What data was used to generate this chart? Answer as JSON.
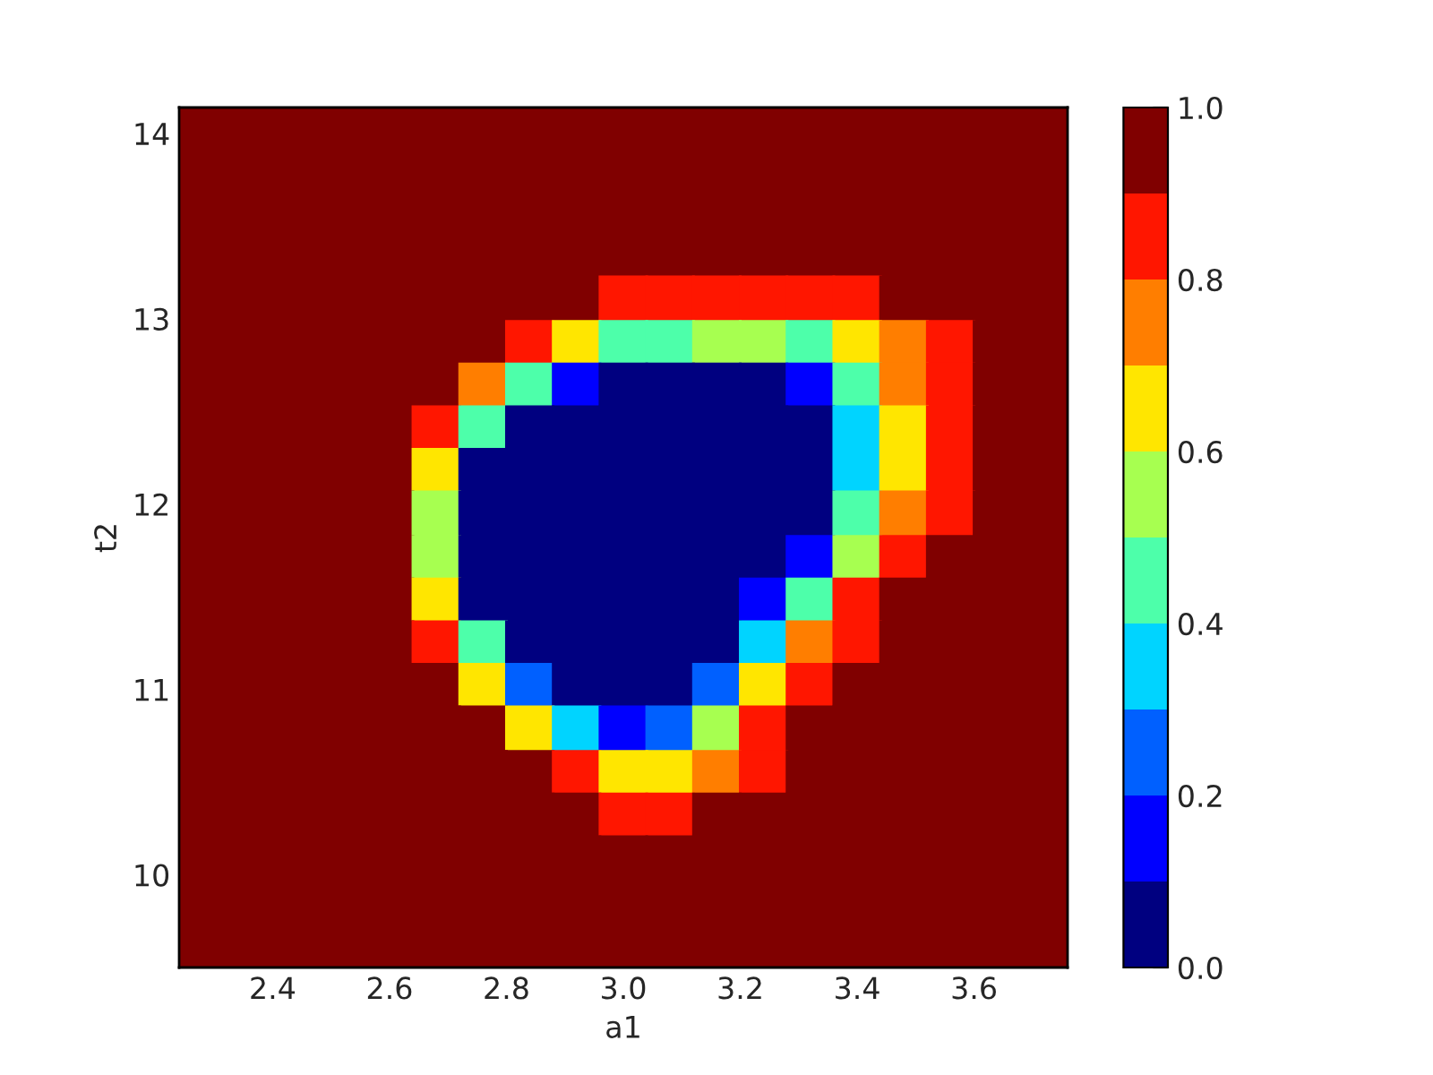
{
  "chart_data": {
    "type": "scatter",
    "marker": "square",
    "xlabel": "a1",
    "ylabel": "t2",
    "xlim": [
      2.24,
      3.76
    ],
    "xticks": [
      {
        "value": 2.4,
        "label": "2.4"
      },
      {
        "value": 2.6,
        "label": "2.6"
      },
      {
        "value": 2.8,
        "label": "2.8"
      },
      {
        "value": 3.0,
        "label": "3.0"
      },
      {
        "value": 3.2,
        "label": "3.2"
      },
      {
        "value": 3.4,
        "label": "3.4"
      },
      {
        "value": 3.6,
        "label": "3.6"
      }
    ],
    "ylim": [
      9.5,
      14.14
    ],
    "yticks": [
      10,
      11,
      12,
      13,
      14
    ],
    "clim": [
      0,
      1
    ],
    "cticks": [
      {
        "value": 0,
        "label": "0.0"
      },
      {
        "value": 0.2,
        "label": "0.2"
      },
      {
        "value": 0.4,
        "label": "0.4"
      },
      {
        "value": 0.6,
        "label": "0.6"
      },
      {
        "value": 0.8,
        "label": "0.8"
      },
      {
        "value": 1,
        "label": "1.0"
      }
    ],
    "x": [
      2.28,
      2.36,
      2.44,
      2.52,
      2.6,
      2.68,
      2.76,
      2.84,
      2.92,
      3.0,
      3.08,
      3.16,
      3.24,
      3.32,
      3.4,
      3.48,
      3.56,
      3.64,
      3.72,
      2.28,
      2.36,
      2.44,
      2.52,
      2.6,
      2.68,
      2.76,
      2.84,
      2.92,
      3.0,
      3.08,
      3.16,
      3.24,
      3.32,
      3.4,
      3.48,
      3.56,
      3.64,
      3.72,
      2.28,
      2.36,
      2.44,
      2.52,
      2.6,
      2.68,
      2.76,
      2.84,
      2.92,
      3.0,
      3.08,
      3.16,
      3.24,
      3.32,
      3.4,
      3.48,
      3.56,
      3.64,
      3.72,
      2.28,
      2.36,
      2.44,
      2.52,
      2.6,
      2.68,
      2.76,
      2.84,
      2.92,
      3.0,
      3.08,
      3.16,
      3.24,
      3.32,
      3.4,
      3.48,
      3.56,
      3.64,
      3.72,
      2.28,
      2.36,
      2.44,
      2.52,
      2.6,
      2.68,
      2.76,
      2.84,
      2.92,
      3.0,
      3.08,
      3.16,
      3.24,
      3.32,
      3.4,
      3.48,
      3.56,
      3.64,
      3.72,
      2.28,
      2.36,
      2.44,
      2.52,
      2.6,
      2.68,
      2.76,
      2.84,
      2.92,
      3.0,
      3.08,
      3.16,
      3.24,
      3.32,
      3.4,
      3.48,
      3.56,
      3.64,
      3.72,
      2.28,
      2.36,
      2.44,
      2.52,
      2.6,
      2.68,
      2.76,
      2.84,
      2.92,
      3.0,
      3.08,
      3.16,
      3.24,
      3.32,
      3.4,
      3.48,
      3.56,
      3.64,
      3.72,
      2.28,
      2.36,
      2.44,
      2.52,
      2.6,
      2.68,
      2.76,
      2.84,
      2.92,
      3.0,
      3.08,
      3.16,
      3.24,
      3.32,
      3.4,
      3.48,
      3.56,
      3.64,
      3.72,
      2.28,
      2.36,
      2.44,
      2.52,
      2.6,
      2.68,
      2.76,
      2.84,
      2.92,
      3.0,
      3.08,
      3.16,
      3.24,
      3.32,
      3.4,
      3.48,
      3.56,
      3.64,
      3.72,
      2.28,
      2.36,
      2.44,
      2.52,
      2.6,
      2.68,
      2.76,
      2.84,
      2.92,
      3.0,
      3.08,
      3.16,
      3.24,
      3.32,
      3.4,
      3.48,
      3.56,
      3.64,
      3.72,
      2.28,
      2.36,
      2.44,
      2.52,
      2.6,
      2.68,
      2.76,
      2.84,
      2.92,
      3.0,
      3.08,
      3.16,
      3.24,
      3.32,
      3.4,
      3.48,
      3.56,
      3.64,
      3.72,
      2.28,
      2.36,
      2.44,
      2.52,
      2.6,
      2.68,
      2.76,
      2.84,
      2.92,
      3.0,
      3.08,
      3.16,
      3.24,
      3.32,
      3.4,
      3.48,
      3.56,
      3.64,
      3.72,
      2.28,
      2.36,
      2.44,
      2.52,
      2.6,
      2.68,
      2.76,
      2.84,
      2.92,
      3.0,
      3.08,
      3.16,
      3.24,
      3.32,
      3.4,
      3.48,
      3.56,
      3.64,
      3.72,
      2.28,
      2.36,
      2.44,
      2.52,
      2.6,
      2.68,
      2.76,
      2.84,
      2.92,
      3.0,
      3.08,
      3.16,
      3.24,
      3.32,
      3.4,
      3.48,
      3.56,
      3.64,
      3.72,
      2.28,
      2.36,
      2.44,
      2.52,
      2.6,
      2.68,
      2.76,
      2.84,
      2.92,
      3.0,
      3.08,
      3.16,
      3.24,
      3.32,
      3.4,
      3.48,
      3.56,
      3.64,
      3.72,
      2.28,
      2.36,
      2.44,
      2.52,
      2.6,
      2.68,
      2.76,
      2.84,
      2.92,
      3.0,
      3.08,
      3.16,
      3.24,
      3.32,
      3.4,
      3.48,
      3.56,
      3.64,
      3.72,
      2.28,
      2.36,
      2.44,
      2.52,
      2.6,
      2.68,
      2.76,
      2.84,
      2.92,
      3.0,
      3.08,
      3.16,
      3.24,
      3.32,
      3.4,
      3.48,
      3.56,
      3.64,
      3.72,
      2.28,
      2.36,
      2.44,
      2.52,
      2.6,
      2.68,
      2.76,
      2.84,
      2.92,
      3.0,
      3.08,
      3.16,
      3.24,
      3.32,
      3.4,
      3.48,
      3.56,
      3.64,
      3.72,
      2.28,
      2.36,
      2.44,
      2.52,
      2.6,
      2.68,
      2.76,
      2.84,
      2.92,
      3.0,
      3.08,
      3.16,
      3.24,
      3.32,
      3.4,
      3.48,
      3.56,
      3.64,
      3.72,
      2.28,
      2.36,
      2.44,
      2.52,
      2.6,
      2.68,
      2.76,
      2.84,
      2.92,
      3.0,
      3.08,
      3.16,
      3.24,
      3.32,
      3.4,
      3.48,
      3.56,
      3.64,
      3.72
    ],
    "values": [
      14.02,
      14.02,
      14.02,
      14.02,
      14.02,
      14.02,
      14.02,
      14.02,
      14.02,
      14.02,
      14.02,
      14.02,
      14.02,
      14.02,
      14.02,
      14.02,
      14.02,
      14.02,
      14.02,
      13.79,
      13.79,
      13.79,
      13.79,
      13.79,
      13.79,
      13.79,
      13.79,
      13.79,
      13.79,
      13.79,
      13.79,
      13.79,
      13.79,
      13.79,
      13.79,
      13.79,
      13.79,
      13.79,
      13.56,
      13.56,
      13.56,
      13.56,
      13.56,
      13.56,
      13.56,
      13.56,
      13.56,
      13.56,
      13.56,
      13.56,
      13.56,
      13.56,
      13.56,
      13.56,
      13.56,
      13.56,
      13.56,
      13.33,
      13.33,
      13.33,
      13.33,
      13.33,
      13.33,
      13.33,
      13.33,
      13.33,
      13.33,
      13.33,
      13.33,
      13.33,
      13.33,
      13.33,
      13.33,
      13.33,
      13.33,
      13.33,
      13.1,
      13.1,
      13.1,
      13.1,
      13.1,
      13.1,
      13.1,
      13.1,
      13.1,
      13.1,
      13.1,
      13.1,
      13.1,
      13.1,
      13.1,
      13.1,
      13.1,
      13.1,
      13.1,
      12.86,
      12.86,
      12.86,
      12.86,
      12.86,
      12.86,
      12.86,
      12.86,
      12.86,
      12.86,
      12.86,
      12.86,
      12.86,
      12.86,
      12.86,
      12.86,
      12.86,
      12.86,
      12.86,
      12.63,
      12.63,
      12.63,
      12.63,
      12.63,
      12.63,
      12.63,
      12.63,
      12.63,
      12.63,
      12.63,
      12.63,
      12.63,
      12.63,
      12.63,
      12.63,
      12.63,
      12.63,
      12.63,
      12.4,
      12.4,
      12.4,
      12.4,
      12.4,
      12.4,
      12.4,
      12.4,
      12.4,
      12.4,
      12.4,
      12.4,
      12.4,
      12.4,
      12.4,
      12.4,
      12.4,
      12.4,
      12.4,
      12.17,
      12.17,
      12.17,
      12.17,
      12.17,
      12.17,
      12.17,
      12.17,
      12.17,
      12.17,
      12.17,
      12.17,
      12.17,
      12.17,
      12.17,
      12.17,
      12.17,
      12.17,
      12.17,
      11.94,
      11.94,
      11.94,
      11.94,
      11.94,
      11.94,
      11.94,
      11.94,
      11.94,
      11.94,
      11.94,
      11.94,
      11.94,
      11.94,
      11.94,
      11.94,
      11.94,
      11.94,
      11.94,
      11.7,
      11.7,
      11.7,
      11.7,
      11.7,
      11.7,
      11.7,
      11.7,
      11.7,
      11.7,
      11.7,
      11.7,
      11.7,
      11.7,
      11.7,
      11.7,
      11.7,
      11.7,
      11.7,
      11.47,
      11.47,
      11.47,
      11.47,
      11.47,
      11.47,
      11.47,
      11.47,
      11.47,
      11.47,
      11.47,
      11.47,
      11.47,
      11.47,
      11.47,
      11.47,
      11.47,
      11.47,
      11.47,
      11.24,
      11.24,
      11.24,
      11.24,
      11.24,
      11.24,
      11.24,
      11.24,
      11.24,
      11.24,
      11.24,
      11.24,
      11.24,
      11.24,
      11.24,
      11.24,
      11.24,
      11.24,
      11.24,
      11.01,
      11.01,
      11.01,
      11.01,
      11.01,
      11.01,
      11.01,
      11.01,
      11.01,
      11.01,
      11.01,
      11.01,
      11.01,
      11.01,
      11.01,
      11.01,
      11.01,
      11.01,
      11.01,
      10.78,
      10.78,
      10.78,
      10.78,
      10.78,
      10.78,
      10.78,
      10.78,
      10.78,
      10.78,
      10.78,
      10.78,
      10.78,
      10.78,
      10.78,
      10.78,
      10.78,
      10.78,
      10.78,
      10.54,
      10.54,
      10.54,
      10.54,
      10.54,
      10.54,
      10.54,
      10.54,
      10.54,
      10.54,
      10.54,
      10.54,
      10.54,
      10.54,
      10.54,
      10.54,
      10.54,
      10.54,
      10.54,
      10.31,
      10.31,
      10.31,
      10.31,
      10.31,
      10.31,
      10.31,
      10.31,
      10.31,
      10.31,
      10.31,
      10.31,
      10.31,
      10.31,
      10.31,
      10.31,
      10.31,
      10.31,
      10.31,
      10.08,
      10.08,
      10.08,
      10.08,
      10.08,
      10.08,
      10.08,
      10.08,
      10.08,
      10.08,
      10.08,
      10.08,
      10.08,
      10.08,
      10.08,
      10.08,
      10.08,
      10.08,
      10.08,
      9.85,
      9.85,
      9.85,
      9.85,
      9.85,
      9.85,
      9.85,
      9.85,
      9.85,
      9.85,
      9.85,
      9.85,
      9.85,
      9.85,
      9.85,
      9.85,
      9.85,
      9.85,
      9.85,
      9.62,
      9.62,
      9.62,
      9.62,
      9.62,
      9.62,
      9.62,
      9.62,
      9.62,
      9.62,
      9.62,
      9.62,
      9.62,
      9.62,
      9.62,
      9.62,
      9.62,
      9.62,
      9.62
    ],
    "cvalues": [
      0.95,
      0.95,
      0.95,
      0.95,
      0.95,
      0.95,
      0.95,
      0.95,
      0.95,
      0.95,
      0.95,
      0.95,
      0.95,
      0.95,
      0.95,
      0.95,
      0.95,
      0.95,
      0.95,
      0.95,
      0.95,
      0.95,
      0.95,
      0.95,
      0.95,
      0.95,
      0.95,
      0.95,
      0.95,
      0.95,
      0.95,
      0.95,
      0.95,
      0.95,
      0.95,
      0.95,
      0.95,
      0.95,
      0.95,
      0.95,
      0.95,
      0.95,
      0.95,
      0.95,
      0.95,
      0.95,
      0.95,
      0.95,
      0.95,
      0.95,
      0.95,
      0.95,
      0.95,
      0.95,
      0.95,
      0.95,
      0.95,
      0.95,
      0.95,
      0.95,
      0.95,
      0.95,
      0.95,
      0.95,
      0.95,
      0.95,
      0.95,
      0.95,
      0.95,
      0.95,
      0.95,
      0.95,
      0.95,
      0.95,
      0.95,
      0.95,
      0.95,
      0.95,
      0.95,
      0.95,
      0.95,
      0.95,
      0.95,
      0.95,
      0.95,
      0.85,
      0.85,
      0.85,
      0.85,
      0.85,
      0.85,
      0.95,
      0.95,
      0.95,
      0.95,
      0.95,
      0.95,
      0.95,
      0.95,
      0.95,
      0.95,
      0.95,
      0.85,
      0.65,
      0.45,
      0.45,
      0.55,
      0.55,
      0.45,
      0.65,
      0.75,
      0.85,
      0.95,
      0.95,
      0.95,
      0.95,
      0.95,
      0.95,
      0.95,
      0.95,
      0.75,
      0.45,
      0.15,
      0.05,
      0.05,
      0.05,
      0.05,
      0.15,
      0.45,
      0.75,
      0.85,
      0.95,
      0.95,
      0.95,
      0.95,
      0.95,
      0.95,
      0.95,
      0.85,
      0.45,
      0.05,
      0.05,
      0.05,
      0.05,
      0.05,
      0.05,
      0.05,
      0.35,
      0.65,
      0.85,
      0.95,
      0.95,
      0.95,
      0.95,
      0.95,
      0.95,
      0.95,
      0.65,
      0.05,
      0.05,
      0.05,
      0.05,
      0.05,
      0.05,
      0.05,
      0.05,
      0.35,
      0.65,
      0.85,
      0.95,
      0.95,
      0.95,
      0.95,
      0.95,
      0.95,
      0.95,
      0.55,
      0.05,
      0.05,
      0.05,
      0.05,
      0.05,
      0.05,
      0.05,
      0.05,
      0.45,
      0.75,
      0.85,
      0.95,
      0.95,
      0.95,
      0.95,
      0.95,
      0.95,
      0.95,
      0.55,
      0.05,
      0.05,
      0.05,
      0.05,
      0.05,
      0.05,
      0.05,
      0.15,
      0.55,
      0.85,
      0.95,
      0.95,
      0.95,
      0.95,
      0.95,
      0.95,
      0.95,
      0.95,
      0.65,
      0.05,
      0.05,
      0.05,
      0.05,
      0.05,
      0.05,
      0.15,
      0.45,
      0.85,
      0.95,
      0.95,
      0.95,
      0.95,
      0.95,
      0.95,
      0.95,
      0.95,
      0.95,
      0.85,
      0.45,
      0.05,
      0.05,
      0.05,
      0.05,
      0.05,
      0.35,
      0.75,
      0.85,
      0.95,
      0.95,
      0.95,
      0.95,
      0.95,
      0.95,
      0.95,
      0.95,
      0.95,
      0.95,
      0.65,
      0.25,
      0.05,
      0.05,
      0.05,
      0.25,
      0.65,
      0.85,
      0.95,
      0.95,
      0.95,
      0.95,
      0.95,
      0.95,
      0.95,
      0.95,
      0.95,
      0.95,
      0.95,
      0.95,
      0.65,
      0.35,
      0.15,
      0.25,
      0.55,
      0.85,
      0.95,
      0.95,
      0.95,
      0.95,
      0.95,
      0.95,
      0.95,
      0.95,
      0.95,
      0.95,
      0.95,
      0.95,
      0.95,
      0.95,
      0.85,
      0.65,
      0.65,
      0.75,
      0.85,
      0.95,
      0.95,
      0.95,
      0.95,
      0.95,
      0.95,
      0.95,
      0.95,
      0.95,
      0.95,
      0.95,
      0.95,
      0.95,
      0.95,
      0.95,
      0.85,
      0.85,
      0.95,
      0.95,
      0.95,
      0.95,
      0.95,
      0.95,
      0.95,
      0.95,
      0.95,
      0.95,
      0.95,
      0.95,
      0.95,
      0.95,
      0.95,
      0.95,
      0.95,
      0.95,
      0.95,
      0.95,
      0.95,
      0.95,
      0.95,
      0.95,
      0.95,
      0.95,
      0.95,
      0.95,
      0.95,
      0.95,
      0.95,
      0.95,
      0.95,
      0.95,
      0.95,
      0.95,
      0.95,
      0.95,
      0.95,
      0.95,
      0.95,
      0.95,
      0.95,
      0.95,
      0.95,
      0.95,
      0.95,
      0.95,
      0.95,
      0.95,
      0.95,
      0.95,
      0.95,
      0.95,
      0.95,
      0.95,
      0.95,
      0.95,
      0.95,
      0.95,
      0.95,
      0.95,
      0.95,
      0.95,
      0.95
    ]
  }
}
